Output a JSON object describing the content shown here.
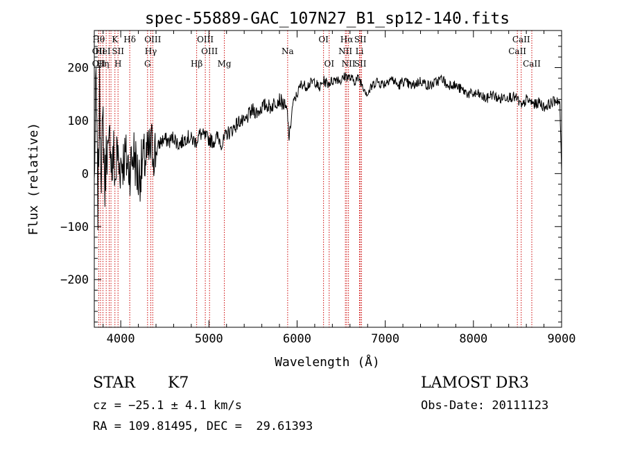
{
  "chart_data": {
    "type": "line",
    "title": "spec-55889-GAC_107N27_B1_sp12-140.fits",
    "xlabel": "Wavelength (Å)",
    "ylabel": "Flux (relative)",
    "xlim": [
      3700,
      9000
    ],
    "ylim": [
      -290,
      270
    ],
    "x_ticks": [
      4000,
      5000,
      6000,
      7000,
      8000,
      9000
    ],
    "x_tick_labels": [
      "4000",
      "5000",
      "6000",
      "7000",
      "8000",
      "9000"
    ],
    "y_ticks": [
      -200,
      -100,
      0,
      100,
      200
    ],
    "y_tick_labels": [
      "−200",
      "−100",
      "0",
      "100",
      "200"
    ],
    "series": [
      {
        "values_x": [
          3700,
          3720,
          3740,
          3760,
          3780,
          3800,
          3820,
          3840,
          3860,
          3880,
          3900,
          3920,
          3940,
          3960,
          3980,
          4000,
          4050,
          4100,
          4150,
          4200,
          4250,
          4300,
          4350,
          4400,
          4450,
          4500,
          4550,
          4600,
          4650,
          4700,
          4750,
          4800,
          4850,
          4900,
          4950,
          5000,
          5050,
          5100,
          5150,
          5200,
          5250,
          5300,
          5350,
          5400,
          5450,
          5500,
          5550,
          5600,
          5650,
          5700,
          5750,
          5800,
          5850,
          5890,
          5910,
          5950,
          6000,
          6050,
          6100,
          6150,
          6200,
          6250,
          6300,
          6350,
          6400,
          6450,
          6500,
          6550,
          6600,
          6650,
          6700,
          6750,
          6800,
          6850,
          6900,
          6950,
          7000,
          7050,
          7100,
          7150,
          7200,
          7250,
          7300,
          7350,
          7400,
          7450,
          7500,
          7550,
          7600,
          7650,
          7700,
          7750,
          7800,
          7850,
          7900,
          7950,
          8000,
          8050,
          8100,
          8150,
          8200,
          8250,
          8300,
          8350,
          8400,
          8450,
          8500,
          8550,
          8600,
          8650,
          8700,
          8750,
          8800,
          8850,
          8900,
          8950,
          8980,
          9000
        ],
        "values_y": [
          -20,
          180,
          -60,
          150,
          10,
          100,
          -30,
          60,
          20,
          80,
          0,
          40,
          -20,
          50,
          10,
          20,
          30,
          10,
          40,
          -10,
          20,
          30,
          50,
          40,
          60,
          65,
          60,
          70,
          55,
          60,
          70,
          65,
          60,
          75,
          70,
          65,
          60,
          70,
          55,
          75,
          80,
          90,
          100,
          95,
          110,
          120,
          115,
          125,
          130,
          125,
          135,
          140,
          130,
          115,
          65,
          130,
          150,
          170,
          165,
          170,
          175,
          160,
          175,
          170,
          175,
          180,
          175,
          185,
          180,
          175,
          180,
          165,
          150,
          165,
          175,
          170,
          170,
          180,
          175,
          165,
          175,
          170,
          165,
          170,
          175,
          170,
          165,
          170,
          175,
          180,
          165,
          170,
          165,
          160,
          155,
          150,
          150,
          150,
          145,
          140,
          150,
          145,
          140,
          145,
          145,
          145,
          140,
          125,
          140,
          135,
          130,
          135,
          125,
          130,
          135,
          140,
          130,
          0
        ]
      }
    ],
    "line_markers": [
      {
        "wavelength": 3750,
        "labels": [
          "Hθ",
          "OII",
          "OII"
        ]
      },
      {
        "wavelength": 3771,
        "labels": [
          "",
          "",
          ""
        ]
      },
      {
        "wavelength": 3798,
        "labels": [
          "",
          "HeI",
          "Hη"
        ]
      },
      {
        "wavelength": 3835,
        "labels": [
          "",
          "",
          ""
        ]
      },
      {
        "wavelength": 3869,
        "labels": [
          "",
          "",
          ""
        ]
      },
      {
        "wavelength": 3889,
        "labels": [
          "",
          "",
          ""
        ]
      },
      {
        "wavelength": 3934,
        "labels": [
          "K",
          "",
          ""
        ]
      },
      {
        "wavelength": 3969,
        "labels": [
          "",
          "SII",
          "H"
        ]
      },
      {
        "wavelength": 4102,
        "labels": [
          "Hδ",
          "",
          ""
        ]
      },
      {
        "wavelength": 4304,
        "labels": [
          "",
          "",
          "G"
        ]
      },
      {
        "wavelength": 4341,
        "labels": [
          "",
          "Hγ",
          ""
        ]
      },
      {
        "wavelength": 4363,
        "labels": [
          "OIII",
          "",
          ""
        ]
      },
      {
        "wavelength": 4861,
        "labels": [
          "",
          "",
          "Hβ"
        ]
      },
      {
        "wavelength": 4959,
        "labels": [
          "OIII",
          "",
          ""
        ]
      },
      {
        "wavelength": 5007,
        "labels": [
          "",
          "OIII",
          ""
        ]
      },
      {
        "wavelength": 5175,
        "labels": [
          "",
          "",
          "Mg"
        ]
      },
      {
        "wavelength": 5893,
        "labels": [
          "",
          "Na",
          ""
        ]
      },
      {
        "wavelength": 6300,
        "labels": [
          "OI",
          "",
          ""
        ]
      },
      {
        "wavelength": 6364,
        "labels": [
          "",
          "",
          "OI"
        ]
      },
      {
        "wavelength": 6548,
        "labels": [
          "",
          "NII",
          ""
        ]
      },
      {
        "wavelength": 6563,
        "labels": [
          "Hα",
          "",
          ""
        ]
      },
      {
        "wavelength": 6583,
        "labels": [
          "",
          "",
          "NII"
        ]
      },
      {
        "wavelength": 6708,
        "labels": [
          "",
          "Li",
          ""
        ]
      },
      {
        "wavelength": 6717,
        "labels": [
          "SII",
          "",
          "SII"
        ]
      },
      {
        "wavelength": 6731,
        "labels": [
          "",
          "",
          ""
        ]
      },
      {
        "wavelength": 8498,
        "labels": [
          "",
          "CaII",
          ""
        ]
      },
      {
        "wavelength": 8542,
        "labels": [
          "CaII",
          "",
          ""
        ]
      },
      {
        "wavelength": 8662,
        "labels": [
          "",
          "",
          "CaII"
        ]
      }
    ],
    "marker_color": "#cc0000",
    "line_color": "#000000",
    "grid": false,
    "legend": "none"
  },
  "footer": {
    "object_class": "STAR",
    "subclass": "K7",
    "survey": "LAMOST DR3",
    "velocity": "cz = −25.1 ± 4.1 km/s",
    "obs_date": "Obs-Date: 20111123",
    "coords": "RA = 109.81495, DEC =  29.61393"
  }
}
